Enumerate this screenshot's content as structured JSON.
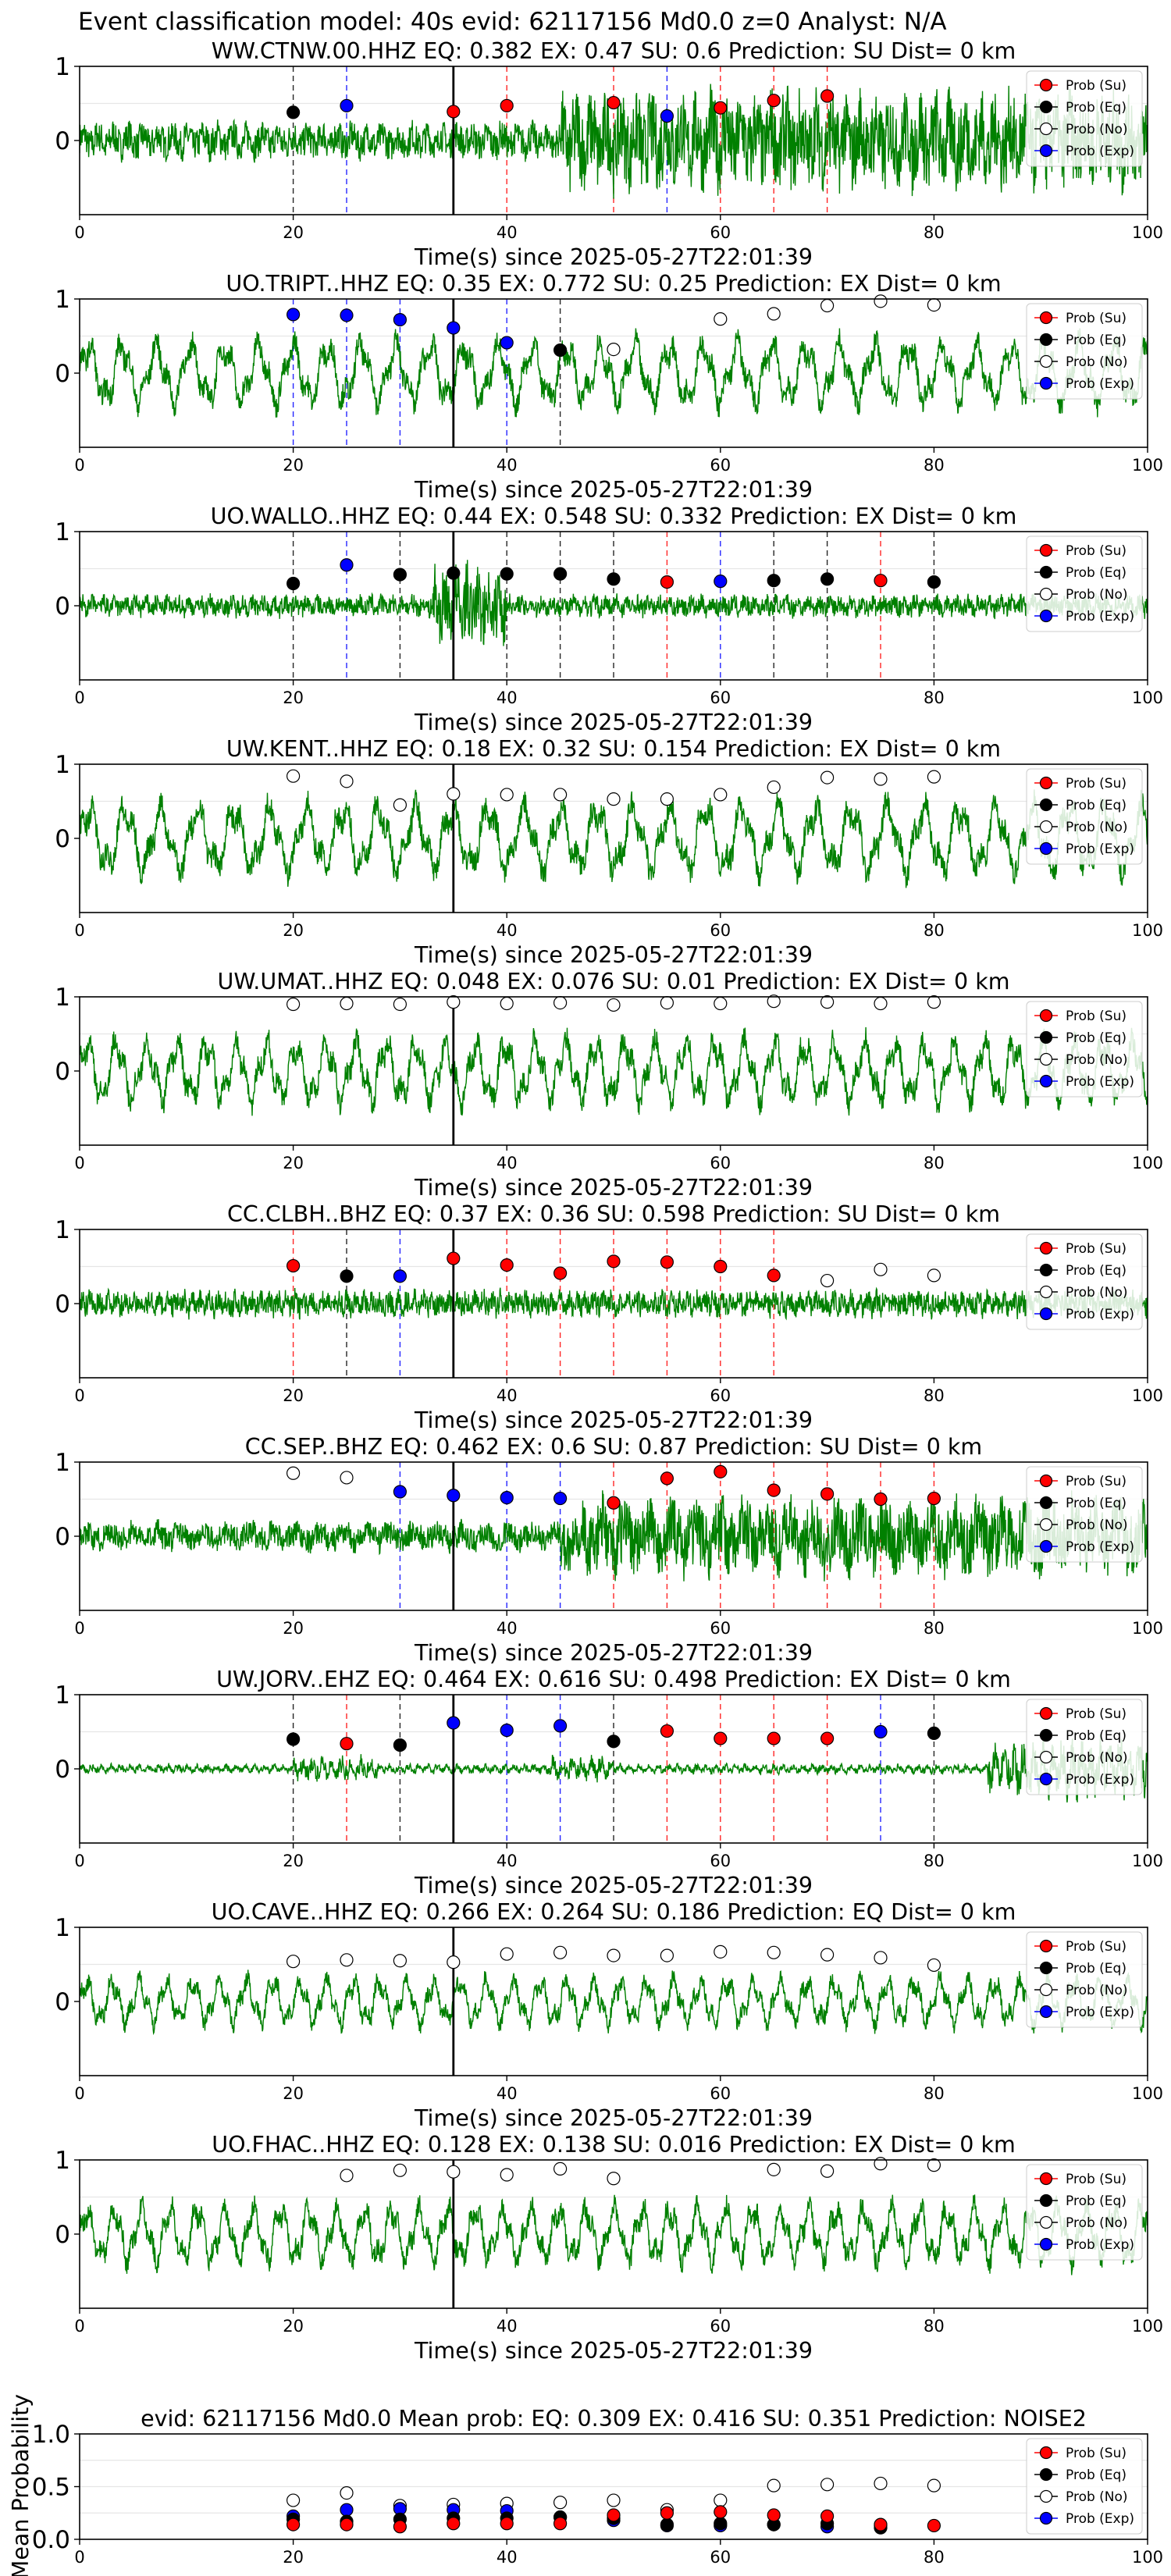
{
  "figure_title": "Event classification model: 40s evid: 62117156 Md0.0 z=0 Analyst: N/A",
  "legend_entries": [
    "Prob (Su)",
    "Prob (Eq)",
    "Prob (No)",
    "Prob (Exp)"
  ],
  "colors": {
    "trace": "#008000",
    "su": "#ff0000",
    "eq": "#000000",
    "no": "#ffffff",
    "exp": "#0000ff",
    "grid": "#e6e6e6"
  },
  "chart_data": [
    {
      "type": "line",
      "title": "WW.CTNW.00.HHZ   EQ: 0.382  EX: 0.47  SU: 0.6   Prediction: SU    Dist= 0 km",
      "xlabel": "Time(s) since 2025-05-27T22:01:39",
      "ylabel": "",
      "xlim": [
        0,
        100
      ],
      "ylim": [
        -1,
        1
      ],
      "xticks": [
        "0",
        "20",
        "40",
        "60",
        "80",
        "100"
      ],
      "yticks": [
        "0",
        "1"
      ],
      "trace": {
        "style": "noisy-late",
        "period": 1.4,
        "amp": 0.25
      },
      "pick_line": 35,
      "windows": [
        {
          "t": 20,
          "cls": "eq",
          "p": 0.38
        },
        {
          "t": 25,
          "cls": "exp",
          "p": 0.47
        },
        {
          "t": 35,
          "cls": "su",
          "p": 0.39
        },
        {
          "t": 40,
          "cls": "su",
          "p": 0.47
        },
        {
          "t": 50,
          "cls": "su",
          "p": 0.51
        },
        {
          "t": 55,
          "cls": "exp",
          "p": 0.33
        },
        {
          "t": 60,
          "cls": "su",
          "p": 0.44
        },
        {
          "t": 65,
          "cls": "su",
          "p": 0.54
        },
        {
          "t": 70,
          "cls": "su",
          "p": 0.6
        }
      ]
    },
    {
      "type": "line",
      "title": "UO.TRIPT..HHZ   EQ: 0.35  EX: 0.772  SU: 0.25   Prediction: EX    Dist= 0 km",
      "xlabel": "Time(s) since 2025-05-27T22:01:39",
      "ylabel": "",
      "xlim": [
        0,
        100
      ],
      "ylim": [
        -1,
        1
      ],
      "xticks": [
        "0",
        "20",
        "40",
        "60",
        "80",
        "100"
      ],
      "yticks": [
        "0",
        "1"
      ],
      "trace": {
        "style": "oscillating",
        "period": 3.2,
        "amp": 0.55
      },
      "pick_line": 35,
      "windows": [
        {
          "t": 20,
          "cls": "exp",
          "p": 0.79
        },
        {
          "t": 25,
          "cls": "exp",
          "p": 0.78
        },
        {
          "t": 30,
          "cls": "exp",
          "p": 0.72
        },
        {
          "t": 35,
          "cls": "exp",
          "p": 0.61
        },
        {
          "t": 40,
          "cls": "exp",
          "p": 0.41
        },
        {
          "t": 45,
          "cls": "eq",
          "p": 0.31
        },
        {
          "t": 50,
          "cls": "no",
          "p": 0.32
        },
        {
          "t": 60,
          "cls": "no",
          "p": 0.73
        },
        {
          "t": 65,
          "cls": "no",
          "p": 0.8
        },
        {
          "t": 70,
          "cls": "no",
          "p": 0.91
        },
        {
          "t": 75,
          "cls": "no",
          "p": 0.97
        },
        {
          "t": 80,
          "cls": "no",
          "p": 0.92
        }
      ]
    },
    {
      "type": "line",
      "title": "UO.WALLO..HHZ   EQ: 0.44  EX: 0.548  SU: 0.332   Prediction: EX    Dist= 0 km",
      "xlabel": "Time(s) since 2025-05-27T22:01:39",
      "ylabel": "",
      "xlim": [
        0,
        100
      ],
      "ylim": [
        -1,
        1
      ],
      "xticks": [
        "0",
        "20",
        "40",
        "60",
        "80",
        "100"
      ],
      "yticks": [
        "0",
        "1"
      ],
      "trace": {
        "style": "noisy-burst",
        "period": 1.0,
        "amp": 0.15
      },
      "pick_line": 35,
      "windows": [
        {
          "t": 20,
          "cls": "eq",
          "p": 0.3
        },
        {
          "t": 25,
          "cls": "exp",
          "p": 0.55
        },
        {
          "t": 30,
          "cls": "eq",
          "p": 0.42
        },
        {
          "t": 35,
          "cls": "eq",
          "p": 0.44
        },
        {
          "t": 40,
          "cls": "eq",
          "p": 0.43
        },
        {
          "t": 45,
          "cls": "eq",
          "p": 0.43
        },
        {
          "t": 50,
          "cls": "eq",
          "p": 0.36
        },
        {
          "t": 55,
          "cls": "su",
          "p": 0.32
        },
        {
          "t": 60,
          "cls": "exp",
          "p": 0.33
        },
        {
          "t": 65,
          "cls": "eq",
          "p": 0.34
        },
        {
          "t": 70,
          "cls": "eq",
          "p": 0.36
        },
        {
          "t": 75,
          "cls": "su",
          "p": 0.34
        },
        {
          "t": 80,
          "cls": "eq",
          "p": 0.32
        }
      ]
    },
    {
      "type": "line",
      "title": "UW.KENT..HHZ   EQ: 0.18  EX: 0.32  SU: 0.154   Prediction: EX    Dist= 0 km",
      "xlabel": "Time(s) since 2025-05-27T22:01:39",
      "ylabel": "",
      "xlim": [
        0,
        100
      ],
      "ylim": [
        -1,
        1
      ],
      "xticks": [
        "0",
        "20",
        "40",
        "60",
        "80",
        "100"
      ],
      "yticks": [
        "0",
        "1"
      ],
      "trace": {
        "style": "oscillating",
        "period": 3.4,
        "amp": 0.6
      },
      "pick_line": 35,
      "windows": [
        {
          "t": 20,
          "cls": "no",
          "p": 0.84
        },
        {
          "t": 25,
          "cls": "no",
          "p": 0.77
        },
        {
          "t": 30,
          "cls": "no",
          "p": 0.45
        },
        {
          "t": 35,
          "cls": "no",
          "p": 0.6
        },
        {
          "t": 40,
          "cls": "no",
          "p": 0.59
        },
        {
          "t": 45,
          "cls": "no",
          "p": 0.59
        },
        {
          "t": 50,
          "cls": "no",
          "p": 0.53
        },
        {
          "t": 55,
          "cls": "no",
          "p": 0.53
        },
        {
          "t": 60,
          "cls": "no",
          "p": 0.59
        },
        {
          "t": 65,
          "cls": "no",
          "p": 0.69
        },
        {
          "t": 70,
          "cls": "no",
          "p": 0.82
        },
        {
          "t": 75,
          "cls": "no",
          "p": 0.8
        },
        {
          "t": 80,
          "cls": "no",
          "p": 0.83
        }
      ]
    },
    {
      "type": "line",
      "title": "UW.UMAT..HHZ   EQ: 0.048  EX: 0.076  SU: 0.01   Prediction: EX    Dist= 0 km",
      "xlabel": "Time(s) since 2025-05-27T22:01:39",
      "ylabel": "",
      "xlim": [
        0,
        100
      ],
      "ylim": [
        -1,
        1
      ],
      "xticks": [
        "0",
        "20",
        "40",
        "60",
        "80",
        "100"
      ],
      "yticks": [
        "0",
        "1"
      ],
      "trace": {
        "style": "oscillating",
        "period": 2.8,
        "amp": 0.55
      },
      "pick_line": 35,
      "windows": [
        {
          "t": 20,
          "cls": "no",
          "p": 0.9
        },
        {
          "t": 25,
          "cls": "no",
          "p": 0.91
        },
        {
          "t": 30,
          "cls": "no",
          "p": 0.9
        },
        {
          "t": 35,
          "cls": "no",
          "p": 0.93
        },
        {
          "t": 40,
          "cls": "no",
          "p": 0.91
        },
        {
          "t": 45,
          "cls": "no",
          "p": 0.92
        },
        {
          "t": 50,
          "cls": "no",
          "p": 0.89
        },
        {
          "t": 55,
          "cls": "no",
          "p": 0.92
        },
        {
          "t": 60,
          "cls": "no",
          "p": 0.91
        },
        {
          "t": 65,
          "cls": "no",
          "p": 0.94
        },
        {
          "t": 70,
          "cls": "no",
          "p": 0.93
        },
        {
          "t": 75,
          "cls": "no",
          "p": 0.91
        },
        {
          "t": 80,
          "cls": "no",
          "p": 0.93
        }
      ]
    },
    {
      "type": "line",
      "title": "CC.CLBH..BHZ   EQ: 0.37  EX: 0.36  SU: 0.598   Prediction: SU    Dist= 0 km",
      "xlabel": "Time(s) since 2025-05-27T22:01:39",
      "ylabel": "",
      "xlim": [
        0,
        100
      ],
      "ylim": [
        -1,
        1
      ],
      "xticks": [
        "0",
        "20",
        "40",
        "60",
        "80",
        "100"
      ],
      "yticks": [
        "0",
        "1"
      ],
      "trace": {
        "style": "noisy",
        "period": 0.8,
        "amp": 0.18
      },
      "pick_line": 35,
      "windows": [
        {
          "t": 20,
          "cls": "su",
          "p": 0.51
        },
        {
          "t": 25,
          "cls": "eq",
          "p": 0.37
        },
        {
          "t": 30,
          "cls": "exp",
          "p": 0.37
        },
        {
          "t": 35,
          "cls": "su",
          "p": 0.61
        },
        {
          "t": 40,
          "cls": "su",
          "p": 0.52
        },
        {
          "t": 45,
          "cls": "su",
          "p": 0.41
        },
        {
          "t": 50,
          "cls": "su",
          "p": 0.57
        },
        {
          "t": 55,
          "cls": "su",
          "p": 0.56
        },
        {
          "t": 60,
          "cls": "su",
          "p": 0.5
        },
        {
          "t": 65,
          "cls": "su",
          "p": 0.38
        },
        {
          "t": 70,
          "cls": "no",
          "p": 0.31
        },
        {
          "t": 75,
          "cls": "no",
          "p": 0.46
        },
        {
          "t": 80,
          "cls": "no",
          "p": 0.38
        }
      ]
    },
    {
      "type": "line",
      "title": "CC.SEP..BHZ   EQ: 0.462  EX: 0.6  SU: 0.87   Prediction: SU    Dist= 0 km",
      "xlabel": "Time(s) since 2025-05-27T22:01:39",
      "ylabel": "",
      "xlim": [
        0,
        100
      ],
      "ylim": [
        -1,
        1
      ],
      "xticks": [
        "0",
        "20",
        "40",
        "60",
        "80",
        "100"
      ],
      "yticks": [
        "0",
        "1"
      ],
      "trace": {
        "style": "noisy-late",
        "period": 2.2,
        "amp": 0.2
      },
      "pick_line": 35,
      "windows": [
        {
          "t": 20,
          "cls": "no",
          "p": 0.85
        },
        {
          "t": 25,
          "cls": "no",
          "p": 0.79
        },
        {
          "t": 30,
          "cls": "exp",
          "p": 0.6
        },
        {
          "t": 35,
          "cls": "exp",
          "p": 0.55
        },
        {
          "t": 40,
          "cls": "exp",
          "p": 0.52
        },
        {
          "t": 45,
          "cls": "exp",
          "p": 0.51
        },
        {
          "t": 50,
          "cls": "su",
          "p": 0.45
        },
        {
          "t": 55,
          "cls": "su",
          "p": 0.78
        },
        {
          "t": 60,
          "cls": "su",
          "p": 0.87
        },
        {
          "t": 65,
          "cls": "su",
          "p": 0.62
        },
        {
          "t": 70,
          "cls": "su",
          "p": 0.57
        },
        {
          "t": 75,
          "cls": "su",
          "p": 0.5
        },
        {
          "t": 80,
          "cls": "su",
          "p": 0.51
        }
      ]
    },
    {
      "type": "line",
      "title": "UW.JORV..EHZ   EQ: 0.464  EX: 0.616  SU: 0.498   Prediction: EX    Dist= 0 km",
      "xlabel": "Time(s) since 2025-05-27T22:01:39",
      "ylabel": "",
      "xlim": [
        0,
        100
      ],
      "ylim": [
        -1,
        1
      ],
      "xticks": [
        "0",
        "20",
        "40",
        "60",
        "80",
        "100"
      ],
      "yticks": [
        "0",
        "1"
      ],
      "trace": {
        "style": "quiet",
        "period": 0.9,
        "amp": 0.05
      },
      "pick_line": 35,
      "windows": [
        {
          "t": 20,
          "cls": "eq",
          "p": 0.4
        },
        {
          "t": 25,
          "cls": "su",
          "p": 0.34
        },
        {
          "t": 30,
          "cls": "eq",
          "p": 0.32
        },
        {
          "t": 35,
          "cls": "exp",
          "p": 0.62
        },
        {
          "t": 40,
          "cls": "exp",
          "p": 0.52
        },
        {
          "t": 45,
          "cls": "exp",
          "p": 0.58
        },
        {
          "t": 50,
          "cls": "eq",
          "p": 0.37
        },
        {
          "t": 55,
          "cls": "su",
          "p": 0.51
        },
        {
          "t": 60,
          "cls": "su",
          "p": 0.41
        },
        {
          "t": 65,
          "cls": "su",
          "p": 0.41
        },
        {
          "t": 70,
          "cls": "su",
          "p": 0.41
        },
        {
          "t": 75,
          "cls": "exp",
          "p": 0.5
        },
        {
          "t": 80,
          "cls": "eq",
          "p": 0.48
        }
      ]
    },
    {
      "type": "line",
      "title": "UO.CAVE..HHZ   EQ: 0.266  EX: 0.264  SU: 0.186   Prediction: EQ    Dist= 0 km",
      "xlabel": "Time(s) since 2025-05-27T22:01:39",
      "ylabel": "",
      "xlim": [
        0,
        100
      ],
      "ylim": [
        -1,
        1
      ],
      "xticks": [
        "0",
        "20",
        "40",
        "60",
        "80",
        "100"
      ],
      "yticks": [
        "0",
        "1"
      ],
      "trace": {
        "style": "oscillating",
        "period": 2.5,
        "amp": 0.4
      },
      "pick_line": 35,
      "windows": [
        {
          "t": 20,
          "cls": "no",
          "p": 0.54
        },
        {
          "t": 25,
          "cls": "no",
          "p": 0.56
        },
        {
          "t": 30,
          "cls": "no",
          "p": 0.55
        },
        {
          "t": 35,
          "cls": "no",
          "p": 0.53
        },
        {
          "t": 40,
          "cls": "no",
          "p": 0.64
        },
        {
          "t": 45,
          "cls": "no",
          "p": 0.66
        },
        {
          "t": 50,
          "cls": "no",
          "p": 0.62
        },
        {
          "t": 55,
          "cls": "no",
          "p": 0.62
        },
        {
          "t": 60,
          "cls": "no",
          "p": 0.67
        },
        {
          "t": 65,
          "cls": "no",
          "p": 0.66
        },
        {
          "t": 70,
          "cls": "no",
          "p": 0.63
        },
        {
          "t": 75,
          "cls": "no",
          "p": 0.59
        },
        {
          "t": 80,
          "cls": "no",
          "p": 0.49
        }
      ]
    },
    {
      "type": "line",
      "title": "UO.FHAC..HHZ   EQ: 0.128  EX: 0.138  SU: 0.016   Prediction: EX    Dist= 0 km",
      "xlabel": "Time(s) since 2025-05-27T22:01:39",
      "ylabel": "",
      "xlim": [
        0,
        100
      ],
      "ylim": [
        -1,
        1
      ],
      "xticks": [
        "0",
        "20",
        "40",
        "60",
        "80",
        "100"
      ],
      "yticks": [
        "0",
        "1"
      ],
      "trace": {
        "style": "oscillating",
        "period": 2.6,
        "amp": 0.5
      },
      "pick_line": 35,
      "windows": [
        {
          "t": 25,
          "cls": "no",
          "p": 0.79
        },
        {
          "t": 30,
          "cls": "no",
          "p": 0.86
        },
        {
          "t": 35,
          "cls": "no",
          "p": 0.84
        },
        {
          "t": 40,
          "cls": "no",
          "p": 0.8
        },
        {
          "t": 45,
          "cls": "no",
          "p": 0.88
        },
        {
          "t": 50,
          "cls": "no",
          "p": 0.75
        },
        {
          "t": 65,
          "cls": "no",
          "p": 0.87
        },
        {
          "t": 70,
          "cls": "no",
          "p": 0.85
        },
        {
          "t": 75,
          "cls": "no",
          "p": 0.95
        },
        {
          "t": 80,
          "cls": "no",
          "p": 0.93
        }
      ]
    },
    {
      "type": "scatter",
      "title": "evid: 62117156  Md0.0   Mean prob:   EQ: 0.309  EX: 0.416  SU: 0.351   Prediction: NOISE2",
      "xlabel": "",
      "ylabel": "Mean Probability",
      "xlim": [
        0,
        100
      ],
      "ylim": [
        0,
        1
      ],
      "xticks": [
        "0",
        "20",
        "40",
        "60",
        "80",
        "100"
      ],
      "yticks": [
        "0.0",
        "0.5",
        "1.0"
      ],
      "x": [
        20,
        25,
        30,
        35,
        40,
        45,
        50,
        55,
        60,
        65,
        70,
        75,
        80
      ],
      "series": [
        {
          "name": "Prob (No)",
          "cls": "no",
          "values": [
            0.37,
            0.44,
            0.32,
            0.33,
            0.34,
            0.35,
            0.37,
            0.28,
            0.37,
            0.51,
            0.52,
            0.53,
            0.51
          ]
        },
        {
          "name": "Prob (Exp)",
          "cls": "exp",
          "values": [
            0.22,
            0.28,
            0.29,
            0.28,
            0.27,
            0.21,
            0.18,
            0.13,
            0.13,
            0.14,
            0.12,
            0.13,
            null
          ]
        },
        {
          "name": "Prob (Eq)",
          "cls": "eq",
          "values": [
            0.19,
            0.17,
            0.19,
            0.2,
            0.2,
            0.21,
            0.2,
            0.14,
            0.15,
            0.14,
            0.15,
            0.11,
            null
          ]
        },
        {
          "name": "Prob (Su)",
          "cls": "su",
          "values": [
            0.14,
            0.14,
            0.12,
            0.15,
            0.15,
            0.15,
            0.23,
            0.25,
            0.26,
            0.23,
            0.22,
            0.14,
            0.13
          ]
        }
      ]
    }
  ]
}
